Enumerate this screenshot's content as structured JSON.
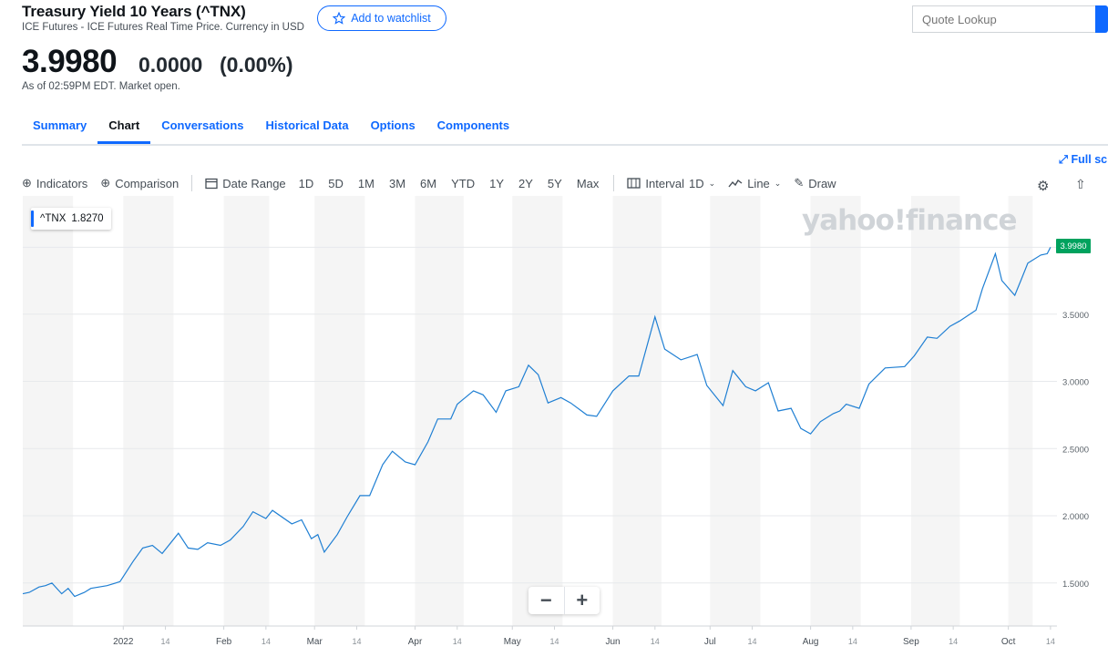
{
  "header": {
    "title": "Treasury Yield 10 Years (^TNX)",
    "subtitle": "ICE Futures - ICE Futures Real Time Price. Currency in USD",
    "watchlist_label": "Add to watchlist",
    "search_placeholder": "Quote Lookup"
  },
  "quote": {
    "price": "3.9980",
    "change": "0.0000",
    "change_pct": "(0.00%)",
    "as_of": "As of 02:59PM EDT. Market open."
  },
  "tabs": [
    "Summary",
    "Chart",
    "Conversations",
    "Historical Data",
    "Options",
    "Components"
  ],
  "active_tab": "Chart",
  "toolbar": {
    "fullscreen_label": "Full sc",
    "indicators_label": "Indicators",
    "comparison_label": "Comparison",
    "date_range_label": "Date Range",
    "ranges": [
      "1D",
      "5D",
      "1M",
      "3M",
      "6M",
      "YTD",
      "1Y",
      "2Y",
      "5Y",
      "Max"
    ],
    "interval_label": "Interval",
    "interval_value": "1D",
    "charttype_label": "Line",
    "draw_label": "Draw"
  },
  "tooltip": {
    "symbol": "^TNX",
    "value": "1.8270"
  },
  "watermark": "yahoo!finance",
  "colors": {
    "accent": "#0f69ff",
    "line": "#1f7fd3",
    "last_badge": "#00a25e"
  },
  "icons": [
    "star-icon",
    "search-icon",
    "expand-icon",
    "plus-circle-icon",
    "calendar-icon",
    "candle-icon",
    "line-chart-icon",
    "pencil-icon",
    "gear-icon",
    "share-icon"
  ],
  "chart_data": {
    "type": "line",
    "series": [
      {
        "name": "^TNX",
        "points": [
          [
            "2021-12-01",
            1.42
          ],
          [
            "2021-12-03",
            1.43
          ],
          [
            "2021-12-06",
            1.47
          ],
          [
            "2021-12-08",
            1.48
          ],
          [
            "2021-12-10",
            1.5
          ],
          [
            "2021-12-13",
            1.42
          ],
          [
            "2021-12-15",
            1.46
          ],
          [
            "2021-12-17",
            1.4
          ],
          [
            "2021-12-20",
            1.43
          ],
          [
            "2021-12-22",
            1.46
          ],
          [
            "2021-12-27",
            1.48
          ],
          [
            "2021-12-31",
            1.51
          ],
          [
            "2022-01-04",
            1.66
          ],
          [
            "2022-01-07",
            1.76
          ],
          [
            "2022-01-10",
            1.78
          ],
          [
            "2022-01-13",
            1.72
          ],
          [
            "2022-01-18",
            1.87
          ],
          [
            "2022-01-21",
            1.76
          ],
          [
            "2022-01-24",
            1.75
          ],
          [
            "2022-01-27",
            1.8
          ],
          [
            "2022-01-31",
            1.78
          ],
          [
            "2022-02-03",
            1.82
          ],
          [
            "2022-02-07",
            1.92
          ],
          [
            "2022-02-10",
            2.03
          ],
          [
            "2022-02-14",
            1.98
          ],
          [
            "2022-02-16",
            2.04
          ],
          [
            "2022-02-22",
            1.94
          ],
          [
            "2022-02-25",
            1.97
          ],
          [
            "2022-02-28",
            1.83
          ],
          [
            "2022-03-02",
            1.86
          ],
          [
            "2022-03-04",
            1.73
          ],
          [
            "2022-03-08",
            1.86
          ],
          [
            "2022-03-11",
            1.99
          ],
          [
            "2022-03-15",
            2.15
          ],
          [
            "2022-03-18",
            2.15
          ],
          [
            "2022-03-22",
            2.38
          ],
          [
            "2022-03-25",
            2.48
          ],
          [
            "2022-03-29",
            2.4
          ],
          [
            "2022-04-01",
            2.38
          ],
          [
            "2022-04-05",
            2.55
          ],
          [
            "2022-04-08",
            2.72
          ],
          [
            "2022-04-12",
            2.72
          ],
          [
            "2022-04-14",
            2.83
          ],
          [
            "2022-04-19",
            2.93
          ],
          [
            "2022-04-22",
            2.9
          ],
          [
            "2022-04-26",
            2.77
          ],
          [
            "2022-04-29",
            2.93
          ],
          [
            "2022-05-03",
            2.96
          ],
          [
            "2022-05-06",
            3.12
          ],
          [
            "2022-05-09",
            3.05
          ],
          [
            "2022-05-12",
            2.84
          ],
          [
            "2022-05-16",
            2.88
          ],
          [
            "2022-05-19",
            2.84
          ],
          [
            "2022-05-24",
            2.75
          ],
          [
            "2022-05-27",
            2.74
          ],
          [
            "2022-06-01",
            2.93
          ],
          [
            "2022-06-06",
            3.04
          ],
          [
            "2022-06-09",
            3.04
          ],
          [
            "2022-06-14",
            3.48
          ],
          [
            "2022-06-17",
            3.24
          ],
          [
            "2022-06-22",
            3.16
          ],
          [
            "2022-06-27",
            3.2
          ],
          [
            "2022-06-30",
            2.97
          ],
          [
            "2022-07-05",
            2.82
          ],
          [
            "2022-07-08",
            3.08
          ],
          [
            "2022-07-12",
            2.96
          ],
          [
            "2022-07-15",
            2.93
          ],
          [
            "2022-07-19",
            2.99
          ],
          [
            "2022-07-22",
            2.78
          ],
          [
            "2022-07-26",
            2.8
          ],
          [
            "2022-07-29",
            2.65
          ],
          [
            "2022-08-01",
            2.61
          ],
          [
            "2022-08-04",
            2.7
          ],
          [
            "2022-08-08",
            2.76
          ],
          [
            "2022-08-10",
            2.78
          ],
          [
            "2022-08-12",
            2.83
          ],
          [
            "2022-08-16",
            2.8
          ],
          [
            "2022-08-19",
            2.98
          ],
          [
            "2022-08-24",
            3.1
          ],
          [
            "2022-08-30",
            3.11
          ],
          [
            "2022-09-02",
            3.19
          ],
          [
            "2022-09-06",
            3.33
          ],
          [
            "2022-09-09",
            3.32
          ],
          [
            "2022-09-13",
            3.41
          ],
          [
            "2022-09-16",
            3.45
          ],
          [
            "2022-09-21",
            3.53
          ],
          [
            "2022-09-23",
            3.69
          ],
          [
            "2022-09-27",
            3.95
          ],
          [
            "2022-09-29",
            3.75
          ],
          [
            "2022-10-03",
            3.64
          ],
          [
            "2022-10-05",
            3.76
          ],
          [
            "2022-10-07",
            3.88
          ],
          [
            "2022-10-11",
            3.94
          ],
          [
            "2022-10-13",
            3.95
          ],
          [
            "2022-10-14",
            3.998
          ]
        ]
      }
    ],
    "x_tick_labels": [
      "2022",
      "14",
      "Feb",
      "14",
      "Mar",
      "14",
      "Apr",
      "14",
      "May",
      "14",
      "Jun",
      "14",
      "Jul",
      "14",
      "Aug",
      "14",
      "Sep",
      "14",
      "Oct",
      "14"
    ],
    "y_tick_labels": [
      "1.5000",
      "2.0000",
      "2.5000",
      "3.0000",
      "3.5000"
    ],
    "y_ticks": [
      1.5,
      2.0,
      2.5,
      3.0,
      3.5
    ],
    "ylim": [
      1.18,
      4.38
    ],
    "last_value_label": "3.9980",
    "grid": true,
    "band_shading": "alternating gray month bands"
  }
}
